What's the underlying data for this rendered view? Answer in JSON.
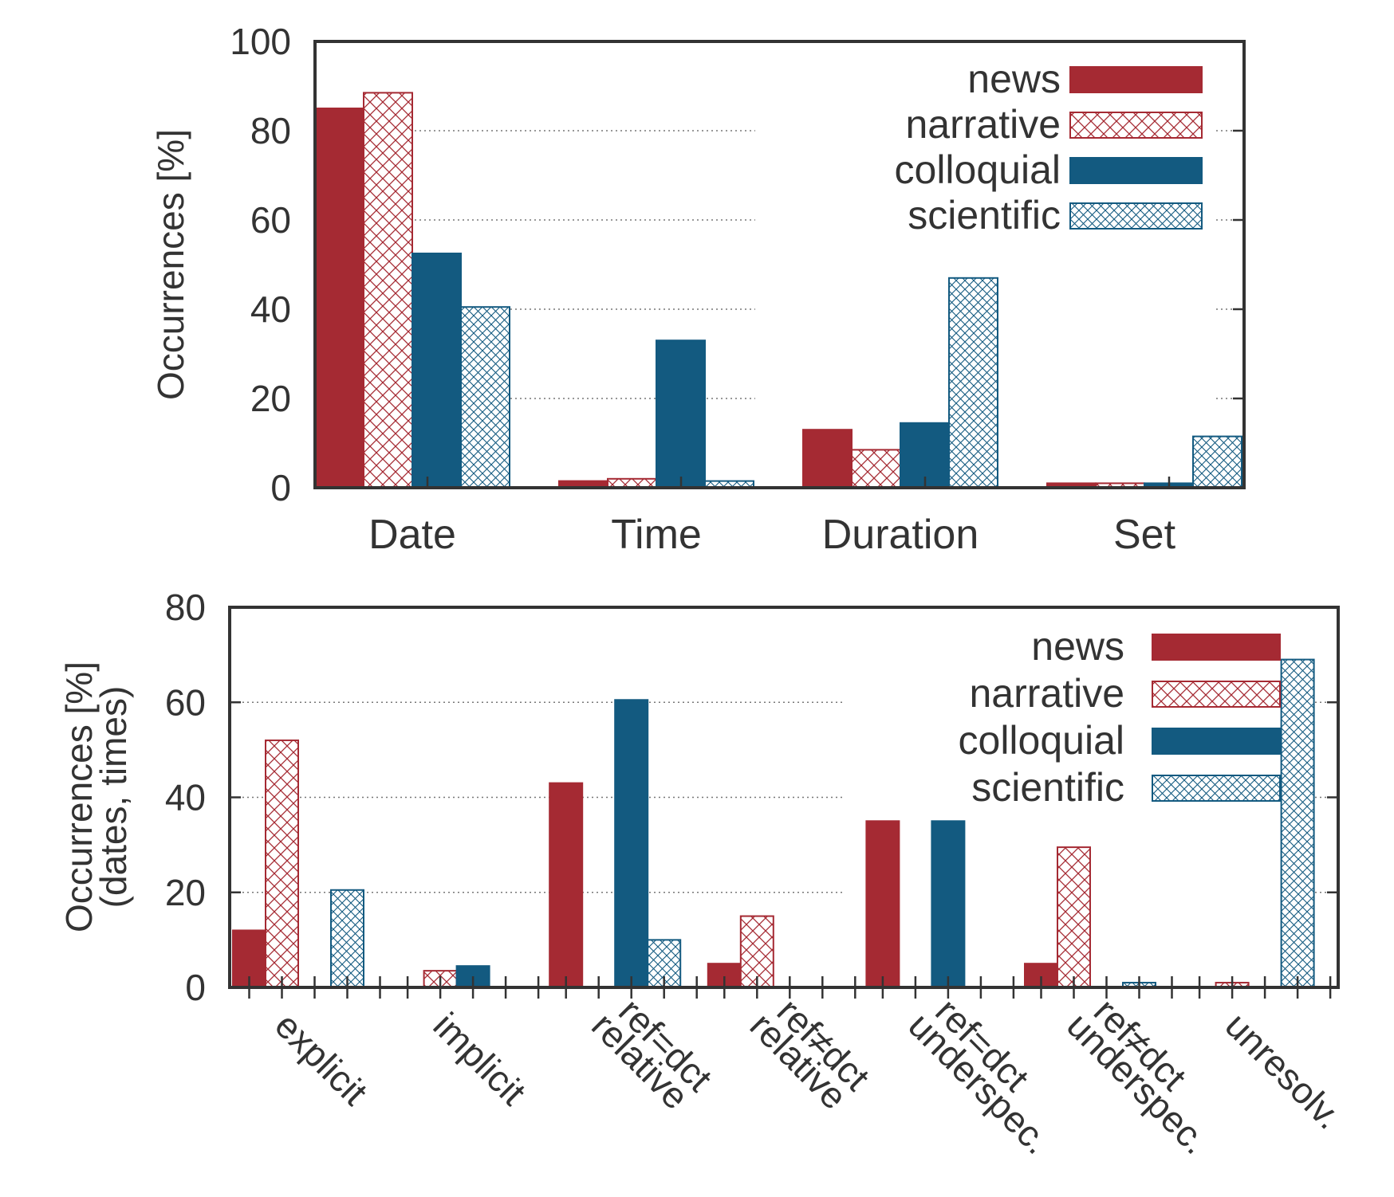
{
  "palette": {
    "news": "#a52a33",
    "narrative": "#a52a33",
    "colloquial": "#135a80",
    "scientific": "#135a80",
    "axis": "#333333",
    "grid": "#777777"
  },
  "chart_data": [
    {
      "type": "bar",
      "ylabel": "Occurrences [%]",
      "ylim": [
        0,
        100
      ],
      "yticks": [
        "0",
        "20",
        "40",
        "60",
        "80",
        "100"
      ],
      "grid": true,
      "legend_position": "top-right",
      "categories": [
        "Date",
        "Time",
        "Duration",
        "Set"
      ],
      "series": [
        {
          "name": "news",
          "fill": "solid",
          "values": [
            85,
            1.5,
            13,
            1
          ]
        },
        {
          "name": "narrative",
          "fill": "hatched",
          "values": [
            88.5,
            2,
            8.5,
            1
          ]
        },
        {
          "name": "colloquial",
          "fill": "solid",
          "values": [
            52.5,
            33,
            14.5,
            1
          ]
        },
        {
          "name": "scientific",
          "fill": "hatched",
          "values": [
            40.5,
            1.5,
            47,
            11.5
          ]
        }
      ]
    },
    {
      "type": "bar",
      "ylabel": [
        "Occurrences [%]",
        "(dates, times)"
      ],
      "ylim": [
        0,
        80
      ],
      "yticks": [
        "0",
        "20",
        "40",
        "60",
        "80"
      ],
      "grid": true,
      "legend_position": "top-right",
      "categories": [
        [
          "explicit"
        ],
        [
          "implicit"
        ],
        [
          "relative",
          "ref=dct"
        ],
        [
          "relative",
          "ref≠dct"
        ],
        [
          "underspec.",
          "ref=dct"
        ],
        [
          "underspec.",
          "ref≠dct"
        ],
        [
          "unresolv."
        ]
      ],
      "series": [
        {
          "name": "news",
          "fill": "solid",
          "values": [
            12,
            0,
            43,
            5,
            35,
            5,
            0
          ]
        },
        {
          "name": "narrative",
          "fill": "hatched",
          "values": [
            52,
            3.5,
            0,
            15,
            0,
            29.5,
            1
          ]
        },
        {
          "name": "colloquial",
          "fill": "solid",
          "values": [
            0,
            4.5,
            60.5,
            0,
            35,
            0,
            0
          ]
        },
        {
          "name": "scientific",
          "fill": "hatched",
          "values": [
            20.5,
            0,
            10,
            0,
            0,
            1,
            69
          ]
        }
      ]
    }
  ]
}
